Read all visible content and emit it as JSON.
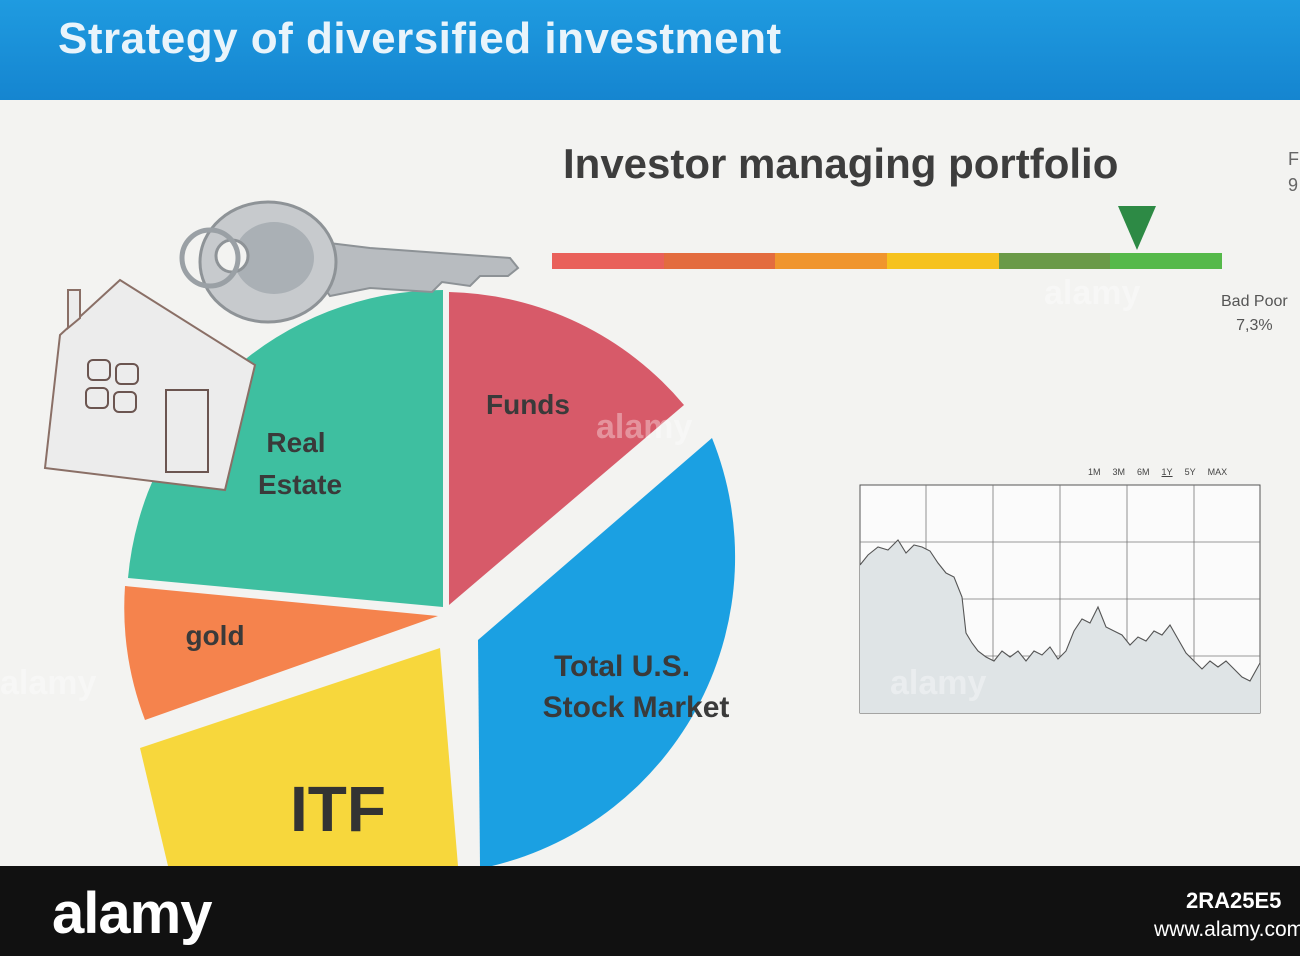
{
  "document": {
    "banner_title": "Strategy of diversified investment",
    "section_title": "Investor managing portfolio",
    "gauge_colors": [
      "#e9605a",
      "#e36c3f",
      "#f0952d",
      "#f6c21e",
      "#6a9a48",
      "#55b94a"
    ],
    "gauge_labels": {
      "bad_poor": "Bad Poor",
      "percent": "7,3%"
    },
    "corner_fragment": [
      "F",
      "9"
    ]
  },
  "pie": {
    "slices": [
      {
        "label": "Real Estate",
        "color": "#3ebfa0"
      },
      {
        "label": "Funds",
        "color": "#d75a69"
      },
      {
        "label": "Total U.S. Stock Market",
        "color": "#1ba0e2"
      },
      {
        "label": "ITF",
        "color": "#f7d73c"
      },
      {
        "label": "gold",
        "color": "#f5834d"
      }
    ],
    "labels": {
      "real_estate_1": "Real",
      "real_estate_2": "Estate",
      "funds": "Funds",
      "stock_1": "Total U.S.",
      "stock_2": "Stock Market",
      "itf": "ITF",
      "gold": "gold"
    }
  },
  "price_chart": {
    "ranges": [
      "1M",
      "3M",
      "6M",
      "1Y",
      "5Y",
      "MAX"
    ],
    "selected_range": "1Y"
  },
  "footer": {
    "logo": "alamy",
    "image_id": "2RA25E5",
    "url": "www.alamy.com"
  },
  "watermark": "alamy"
}
